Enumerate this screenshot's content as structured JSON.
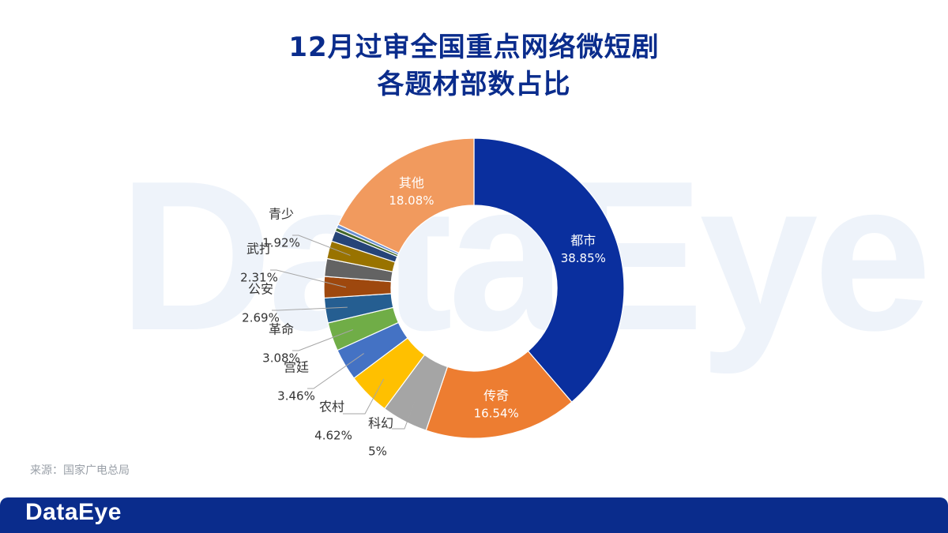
{
  "title_line1": "12月过审全国重点网络微短剧",
  "title_line2": "各题材部数占比",
  "watermark": "DataEye",
  "source": "来源：国家广电总局",
  "footer_brand": "DataEye",
  "chart_data": {
    "type": "pie",
    "variant": "donut",
    "title": "12月过审全国重点网络微短剧各题材部数占比",
    "slices": [
      {
        "label": "都市",
        "value": 38.85,
        "display": "38.85%",
        "color": "#0a2f9e",
        "label_pos": "inside",
        "text_color": "#ffffff"
      },
      {
        "label": "传奇",
        "value": 16.54,
        "display": "16.54%",
        "color": "#ed7d31",
        "label_pos": "inside",
        "text_color": "#ffffff"
      },
      {
        "label": "科幻",
        "value": 5,
        "display": "5%",
        "color": "#a5a5a5",
        "label_pos": "outside",
        "text_color": "#333333"
      },
      {
        "label": "农村",
        "value": 4.62,
        "display": "4.62%",
        "color": "#ffc000",
        "label_pos": "outside",
        "text_color": "#333333"
      },
      {
        "label": "宫廷",
        "value": 3.46,
        "display": "3.46%",
        "color": "#4472c4",
        "label_pos": "outside",
        "text_color": "#333333"
      },
      {
        "label": "革命",
        "value": 3.08,
        "display": "3.08%",
        "color": "#70ad47",
        "label_pos": "outside",
        "text_color": "#333333"
      },
      {
        "label": "公安",
        "value": 2.69,
        "display": "2.69%",
        "color": "#255e91",
        "label_pos": "outside",
        "text_color": "#333333"
      },
      {
        "label": "武打",
        "value": 2.31,
        "display": "2.31%",
        "color": "#9e480e",
        "label_pos": "outside",
        "text_color": "#333333"
      },
      {
        "label": "",
        "value": 1.92,
        "display": "",
        "color": "#636363",
        "label_pos": "none",
        "text_color": "#333333"
      },
      {
        "label": "青少",
        "value": 1.92,
        "display": "1.92%",
        "color": "#997300",
        "label_pos": "outside",
        "text_color": "#333333"
      },
      {
        "label": "",
        "value": 1.15,
        "display": "",
        "color": "#264478",
        "label_pos": "none",
        "text_color": "#333333"
      },
      {
        "label": "",
        "value": 0.38,
        "display": "",
        "color": "#43682b",
        "label_pos": "none",
        "text_color": "#333333"
      },
      {
        "label": "",
        "value": 0.38,
        "display": "",
        "color": "#698ed0",
        "label_pos": "none",
        "text_color": "#333333"
      },
      {
        "label": "其他",
        "value": 18.08,
        "display": "18.08%",
        "color": "#f19a5e",
        "label_pos": "inside",
        "text_color": "#ffffff"
      }
    ]
  }
}
